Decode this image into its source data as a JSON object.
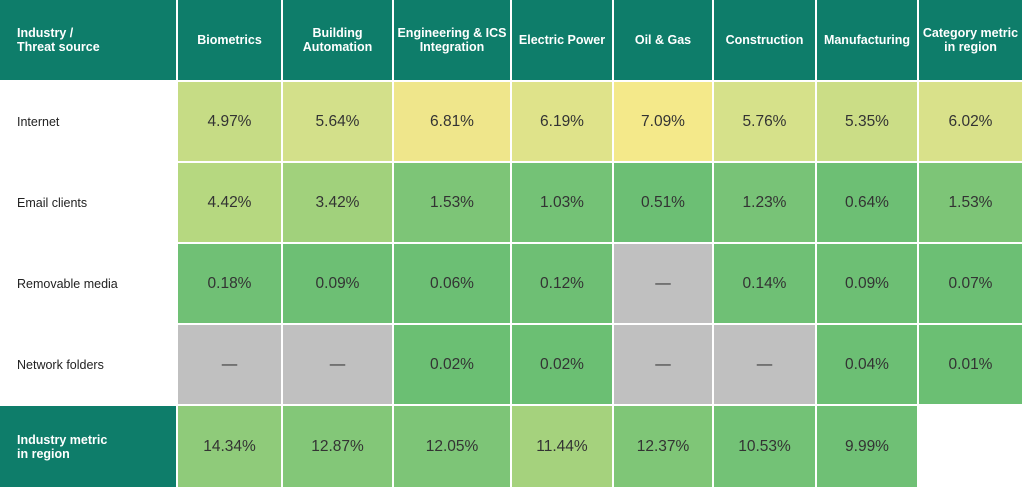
{
  "table": {
    "header": [
      "Industry /\nThreat source",
      "Biometrics",
      "Building\nAutomation",
      "Engineering & ICS\nIntegration",
      "Electric Power",
      "Oil & Gas",
      "Construction",
      "Manufacturing",
      "Category metric\nin region"
    ],
    "rows": [
      {
        "label": "Internet",
        "cells": [
          "4.97%",
          "5.64%",
          "6.81%",
          "6.19%",
          "7.09%",
          "5.76%",
          "5.35%",
          "6.02%"
        ],
        "colors": [
          "#c6dc85",
          "#d3e08a",
          "#efe68b",
          "#dfe38a",
          "#f4e98a",
          "#d6e18a",
          "#cbdd86",
          "#d9e18a"
        ]
      },
      {
        "label": "Email clients",
        "cells": [
          "4.42%",
          "3.42%",
          "1.53%",
          "1.03%",
          "0.51%",
          "1.23%",
          "0.64%",
          "1.53%"
        ],
        "colors": [
          "#b6d880",
          "#a1d17c",
          "#7dc577",
          "#74c276",
          "#6cbf74",
          "#78c377",
          "#6dbf74",
          "#7dc577"
        ]
      },
      {
        "label": "Removable media",
        "cells": [
          "0.18%",
          "0.09%",
          "0.06%",
          "0.12%",
          "—",
          "0.14%",
          "0.09%",
          "0.07%"
        ],
        "colors": [
          "#70c075",
          "#6dbf74",
          "#6cbf74",
          "#6ebf74",
          "#c0c0c0",
          "#6fc075",
          "#6dbf74",
          "#6cbf74"
        ]
      },
      {
        "label": "Network folders",
        "cells": [
          "—",
          "—",
          "0.02%",
          "0.02%",
          "—",
          "—",
          "0.04%",
          "0.01%"
        ],
        "colors": [
          "#c0c0c0",
          "#c0c0c0",
          "#6bbf73",
          "#6bbf73",
          "#c0c0c0",
          "#c0c0c0",
          "#6cbf74",
          "#6bbf73"
        ]
      },
      {
        "label": "Industry metric\nin region",
        "cells": [
          "14.34%",
          "12.87%",
          "12.05%",
          "11.44%",
          "12.37%",
          "10.53%",
          "9.99%",
          null
        ],
        "colors": [
          "#8fcb7a",
          "#83c778",
          "#7dc577",
          "#a5d27d",
          "#7fc677",
          "#73c276",
          "#6fc075",
          null
        ]
      }
    ]
  }
}
